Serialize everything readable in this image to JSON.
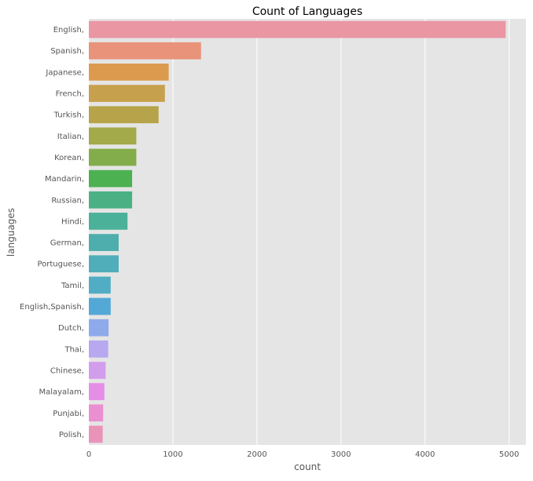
{
  "chart_data": {
    "type": "bar",
    "orientation": "horizontal",
    "title": "Count of Languages",
    "xlabel": "count",
    "ylabel": "languages",
    "xlim": [
      0,
      5200
    ],
    "xticks": [
      0,
      1000,
      2000,
      3000,
      4000,
      5000
    ],
    "grid": true,
    "categories": [
      "English,",
      "Spanish,",
      "Japanese,",
      "French,",
      "Turkish,",
      "Italian,",
      "Korean,",
      "Mandarin,",
      "Russian,",
      "Hindi,",
      "German,",
      "Portuguese,",
      "Tamil,",
      "English,Spanish,",
      "Dutch,",
      "Thai,",
      "Chinese,",
      "Malayalam,",
      "Punjabi,",
      "Polish,"
    ],
    "values": [
      4960,
      1335,
      950,
      905,
      830,
      565,
      565,
      515,
      515,
      460,
      355,
      355,
      260,
      260,
      235,
      230,
      200,
      185,
      170,
      165
    ],
    "colors": [
      "#ea96a3",
      "#e8937a",
      "#dc9a4f",
      "#c6a04c",
      "#b7a44a",
      "#a2aa4a",
      "#82ad4a",
      "#4cb150",
      "#4bb184",
      "#4cb199",
      "#4eaead",
      "#4faeb9",
      "#51adc3",
      "#53a8d6",
      "#8eaaea",
      "#b7a8ef",
      "#d39ded",
      "#e58ee6",
      "#ea90d0",
      "#ea93b8"
    ]
  }
}
